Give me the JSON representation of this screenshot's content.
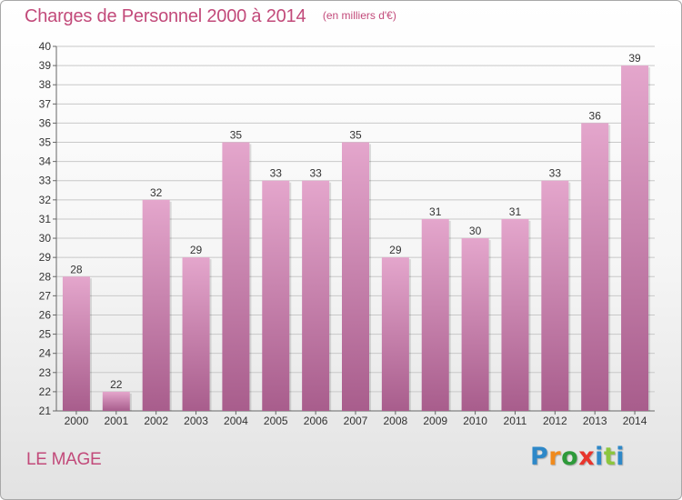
{
  "header": {
    "title": "Charges de Personnel 2000 à 2014",
    "subtitle": "(en milliers d'€)"
  },
  "footer": {
    "place": "LE MAGE",
    "brand": "Proxiti",
    "brand_letters": [
      {
        "ch": "P",
        "color": "#2e88c8"
      },
      {
        "ch": "r",
        "color": "#f08a1c"
      },
      {
        "ch": "o",
        "color": "#2e9a3a"
      },
      {
        "ch": "x",
        "color": "#e8342c"
      },
      {
        "ch": "i",
        "color": "#2e88c8"
      },
      {
        "ch": "t",
        "color": "#8cc63e"
      },
      {
        "ch": "i",
        "color": "#2e88c8"
      }
    ]
  },
  "colors": {
    "bar_top": "#e4a6cc",
    "bar_bottom": "#a85d8c",
    "grid": "#c8c8c8",
    "text": "#333333",
    "accent": "#c24a7a"
  },
  "chart_data": {
    "type": "bar",
    "title": "Charges de Personnel 2000 à 2014",
    "subtitle": "(en milliers d'€)",
    "categories": [
      "2000",
      "2001",
      "2002",
      "2003",
      "2004",
      "2005",
      "2006",
      "2007",
      "2008",
      "2009",
      "2010",
      "2011",
      "2012",
      "2013",
      "2014"
    ],
    "values": [
      28,
      22,
      32,
      29,
      35,
      33,
      33,
      35,
      29,
      31,
      30,
      31,
      33,
      36,
      39
    ],
    "data_labels": [
      "28",
      "22",
      "32",
      "29",
      "35",
      "33",
      "33",
      "35",
      "29",
      "31",
      "30",
      "31",
      "33",
      "36",
      "39"
    ],
    "xlabel": "",
    "ylabel": "",
    "ylim": [
      21,
      40
    ],
    "yticks": [
      21,
      22,
      23,
      24,
      25,
      26,
      27,
      28,
      29,
      30,
      31,
      32,
      33,
      34,
      35,
      36,
      37,
      38,
      39,
      40
    ],
    "grid": true
  }
}
